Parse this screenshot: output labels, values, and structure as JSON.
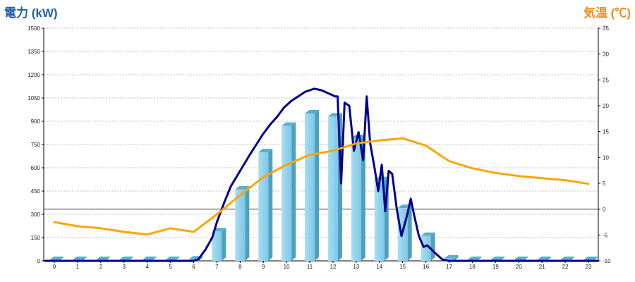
{
  "chart_data": {
    "type": "bar",
    "ylabel_left": "電力 (kW)",
    "ylabel_right": "気温 (℃)",
    "x": [
      0,
      1,
      2,
      3,
      4,
      5,
      6,
      7,
      8,
      9,
      10,
      11,
      12,
      13,
      14,
      15,
      16,
      17,
      18,
      19,
      20,
      21,
      22,
      23
    ],
    "left_axis": {
      "ylim": [
        0,
        1500
      ],
      "ticks": [
        0,
        150,
        300,
        450,
        600,
        750,
        900,
        1050,
        1200,
        1350,
        1500
      ]
    },
    "right_axis": {
      "ylim": [
        -10,
        35
      ],
      "ticks": [
        -10,
        -5,
        0,
        5,
        10,
        15,
        20,
        25,
        30,
        35
      ]
    },
    "grid": true,
    "series": [
      {
        "type": "bar",
        "color": "#87ceeb",
        "values": [
          5,
          5,
          5,
          5,
          5,
          5,
          8,
          190,
          460,
          700,
          870,
          950,
          930,
          790,
          520,
          340,
          160,
          15,
          5,
          5,
          5,
          5,
          5,
          5
        ]
      },
      {
        "type": "line",
        "axis": "left",
        "color": "#00008b",
        "points": [
          [
            -0.4,
            0
          ],
          [
            6.0,
            0
          ],
          [
            6.2,
            10
          ],
          [
            6.5,
            70
          ],
          [
            6.8,
            150
          ],
          [
            7.0,
            250
          ],
          [
            7.3,
            370
          ],
          [
            7.6,
            480
          ],
          [
            8.0,
            580
          ],
          [
            8.4,
            680
          ],
          [
            8.7,
            750
          ],
          [
            9.0,
            820
          ],
          [
            9.3,
            880
          ],
          [
            9.6,
            930
          ],
          [
            9.9,
            990
          ],
          [
            10.2,
            1030
          ],
          [
            10.5,
            1060
          ],
          [
            10.8,
            1090
          ],
          [
            11.2,
            1110
          ],
          [
            11.5,
            1100
          ],
          [
            11.8,
            1080
          ],
          [
            12.1,
            1060
          ],
          [
            12.2,
            1060
          ],
          [
            12.35,
            500
          ],
          [
            12.5,
            1020
          ],
          [
            12.7,
            1000
          ],
          [
            12.9,
            710
          ],
          [
            13.1,
            830
          ],
          [
            13.3,
            650
          ],
          [
            13.45,
            1060
          ],
          [
            13.6,
            760
          ],
          [
            13.8,
            590
          ],
          [
            13.95,
            450
          ],
          [
            14.1,
            620
          ],
          [
            14.25,
            320
          ],
          [
            14.4,
            580
          ],
          [
            14.55,
            560
          ],
          [
            14.75,
            330
          ],
          [
            14.95,
            160
          ],
          [
            15.2,
            300
          ],
          [
            15.35,
            400
          ],
          [
            15.5,
            290
          ],
          [
            15.7,
            160
          ],
          [
            15.9,
            90
          ],
          [
            16.05,
            100
          ],
          [
            16.2,
            80
          ],
          [
            16.4,
            50
          ],
          [
            16.7,
            10
          ],
          [
            17.0,
            0
          ],
          [
            23.4,
            0
          ]
        ]
      },
      {
        "type": "line",
        "axis": "right",
        "color": "#ffa500",
        "points": [
          [
            0,
            -2.5
          ],
          [
            1,
            -3.3
          ],
          [
            2,
            -3.7
          ],
          [
            3,
            -4.4
          ],
          [
            4,
            -4.9
          ],
          [
            5,
            -3.7
          ],
          [
            6,
            -4.4
          ],
          [
            7,
            -1.0
          ],
          [
            8,
            2.7
          ],
          [
            9,
            6.2
          ],
          [
            10,
            8.6
          ],
          [
            11,
            10.5
          ],
          [
            12,
            11.3
          ],
          [
            13,
            12.7
          ],
          [
            14,
            13.3
          ],
          [
            15,
            13.7
          ],
          [
            16,
            12.3
          ],
          [
            17,
            9.3
          ],
          [
            18,
            7.9
          ],
          [
            19,
            7.0
          ],
          [
            20,
            6.4
          ],
          [
            21,
            6.0
          ],
          [
            22,
            5.6
          ],
          [
            23,
            4.9
          ]
        ]
      }
    ]
  }
}
